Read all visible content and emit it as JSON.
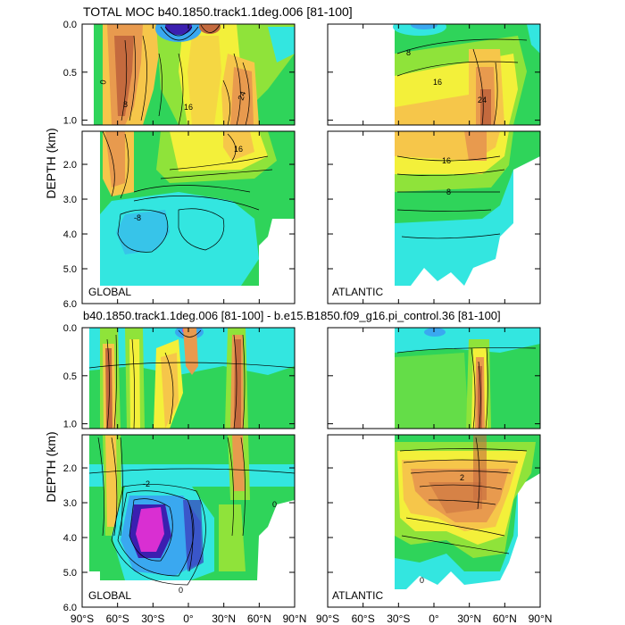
{
  "figure": {
    "title_top": "TOTAL MOC b40.1850.track1.1deg.006 [81-100]",
    "title_bottom": "b40.1850.track1.1deg.006 [81-100] - b.e15.B1850.f09_g16.pi_control.36 [81-100]",
    "ylabel": "DEPTH (km)",
    "region_global": "GLOBAL",
    "region_atlantic": "ATLANTIC"
  },
  "chart_data": [
    {
      "type": "heatmap",
      "title": "TOTAL MOC b40.1850.track1.1deg.006 [81-100]",
      "ylabel": "DEPTH (km)",
      "x_ticks": [
        "90°S",
        "60°S",
        "30°S",
        "0°",
        "30°N",
        "60°N",
        "90°N"
      ],
      "xlim": [
        -90,
        90
      ],
      "depth_ticks_upper": [
        "0.0",
        "0.5",
        "1.0"
      ],
      "depth_ticks_lower": [
        "2.0",
        "3.0",
        "4.0",
        "5.0",
        "6.0"
      ],
      "ylim_upper_km": [
        0,
        1.05
      ],
      "ylim_lower_km": [
        1.05,
        6.0
      ],
      "panels": [
        {
          "region": "GLOBAL",
          "contour_labels": [
            "0",
            "8",
            "16",
            "24",
            "-8"
          ]
        },
        {
          "region": "ATLANTIC",
          "contour_labels": [
            "-8",
            "8",
            "16",
            "24"
          ]
        }
      ]
    },
    {
      "type": "heatmap",
      "title": "b40.1850.track1.1deg.006 [81-100] - b.e15.B1850.f09_g16.pi_control.36 [81-100]",
      "ylabel": "DEPTH (km)",
      "x_ticks": [
        "90°S",
        "60°S",
        "30°S",
        "0°",
        "30°N",
        "60°N",
        "90°N"
      ],
      "xlim": [
        -90,
        90
      ],
      "depth_ticks_upper": [
        "0.0",
        "0.5",
        "1.0"
      ],
      "depth_ticks_lower": [
        "2.0",
        "3.0",
        "4.0",
        "5.0",
        "6.0"
      ],
      "ylim_upper_km": [
        0,
        1.05
      ],
      "ylim_lower_km": [
        1.05,
        6.0
      ],
      "panels": [
        {
          "region": "GLOBAL",
          "contour_labels": [
            "0",
            "2",
            "-2"
          ]
        },
        {
          "region": "ATLANTIC",
          "contour_labels": [
            "0",
            "2"
          ]
        }
      ]
    }
  ],
  "colors": {
    "deep_neg": "#3b1fb0",
    "neg": "#3aa8f0",
    "cyan": "#33e6e0",
    "green": "#2fd45a",
    "light_green": "#8fe33a",
    "yellow": "#f3f03a",
    "light_orange": "#f6c64a",
    "orange": "#e89a4e",
    "dark_orange": "#c46a3e",
    "magenta": "#d92fd2"
  },
  "x_tick_labels": [
    "90°S",
    "60°S",
    "30°S",
    "0°",
    "30°N",
    "60°N",
    "90°N"
  ],
  "upper_ticks": [
    {
      "label": "0.0",
      "d": 0.0
    },
    {
      "label": "0.5",
      "d": 0.5
    },
    {
      "label": "1.0",
      "d": 1.0
    }
  ],
  "lower_ticks": [
    {
      "label": "2.0",
      "d": 2.0
    },
    {
      "label": "3.0",
      "d": 3.0
    },
    {
      "label": "4.0",
      "d": 4.0
    },
    {
      "label": "5.0",
      "d": 5.0
    },
    {
      "label": "6.0",
      "d": 6.0
    }
  ]
}
